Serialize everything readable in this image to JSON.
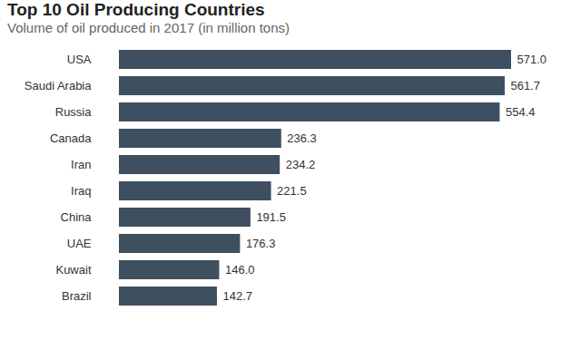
{
  "chart_data": {
    "type": "bar",
    "orientation": "horizontal",
    "title": "Top 10 Oil Producing Countries",
    "subtitle": "Volume of oil produced in 2017 (in million tons)",
    "categories": [
      "USA",
      "Saudi Arabia",
      "Russia",
      "Canada",
      "Iran",
      "Iraq",
      "China",
      "UAE",
      "Kuwait",
      "Brazil"
    ],
    "values": [
      571.0,
      561.7,
      554.4,
      236.3,
      234.2,
      221.5,
      191.5,
      176.3,
      146.0,
      142.7
    ],
    "value_labels": [
      "571.0",
      "561.7",
      "554.4",
      "236.3",
      "234.2",
      "221.5",
      "191.5",
      "176.3",
      "146.0",
      "142.7"
    ],
    "color": "#3e4f60",
    "xlim": [
      0,
      571
    ],
    "data_labels": true,
    "tick_labels": "y",
    "grid": false
  }
}
